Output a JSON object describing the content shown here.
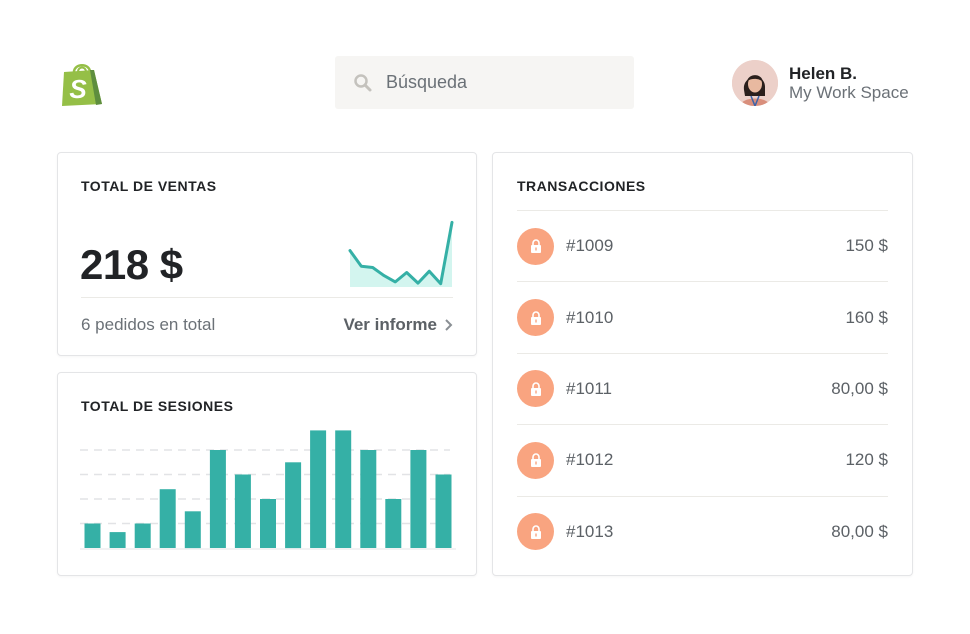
{
  "header": {
    "logo": "shopify-bag-logo",
    "search": {
      "placeholder": "Búsqueda",
      "value": "",
      "icon": "search-icon"
    },
    "user": {
      "name": "Helen B.",
      "workspace": "My Work Space"
    }
  },
  "sales_card": {
    "title": "TOTAL DE VENTAS",
    "amount": "218 $",
    "orders_text": "6 pedidos en total",
    "report_link": "Ver informe",
    "sparkline": [
      0.55,
      0.3,
      0.28,
      0.15,
      0.05,
      0.2,
      0.03,
      0.22,
      0.02,
      1.0
    ]
  },
  "sessions_card": {
    "title": "TOTAL DE SESIONES"
  },
  "transactions_card": {
    "title": "TRANSACCIONES",
    "rows": [
      {
        "id": "#1009",
        "amount": "150 $"
      },
      {
        "id": "#1010",
        "amount": "160 $"
      },
      {
        "id": "#1011",
        "amount": "80,00 $"
      },
      {
        "id": "#1012",
        "amount": "120 $"
      },
      {
        "id": "#1013",
        "amount": "80,00 $"
      }
    ]
  },
  "colors": {
    "accent_teal": "#35b0a6",
    "lock_orange": "#f9a480",
    "logo_green": "#95bf47"
  },
  "chart_data": [
    {
      "type": "area",
      "title": "TOTAL DE VENTAS",
      "x": [
        1,
        2,
        3,
        4,
        5,
        6,
        7,
        8,
        9,
        10
      ],
      "values": [
        0.55,
        0.3,
        0.28,
        0.15,
        0.05,
        0.2,
        0.03,
        0.22,
        0.02,
        1.0
      ],
      "xlabel": "",
      "ylabel": "",
      "grid": false,
      "legend": null
    },
    {
      "type": "bar",
      "title": "TOTAL DE SESIONES",
      "categories": [
        "1",
        "2",
        "3",
        "4",
        "5",
        "6",
        "7",
        "8",
        "9",
        "10",
        "11",
        "12",
        "13",
        "14",
        "15"
      ],
      "values": [
        1,
        0.65,
        1,
        2.4,
        1.5,
        4,
        3,
        2,
        3.5,
        4.8,
        4.8,
        4,
        2,
        4,
        3
      ],
      "ylim": [
        0,
        5
      ],
      "grid": true,
      "xlabel": "",
      "ylabel": "",
      "legend": null
    }
  ]
}
